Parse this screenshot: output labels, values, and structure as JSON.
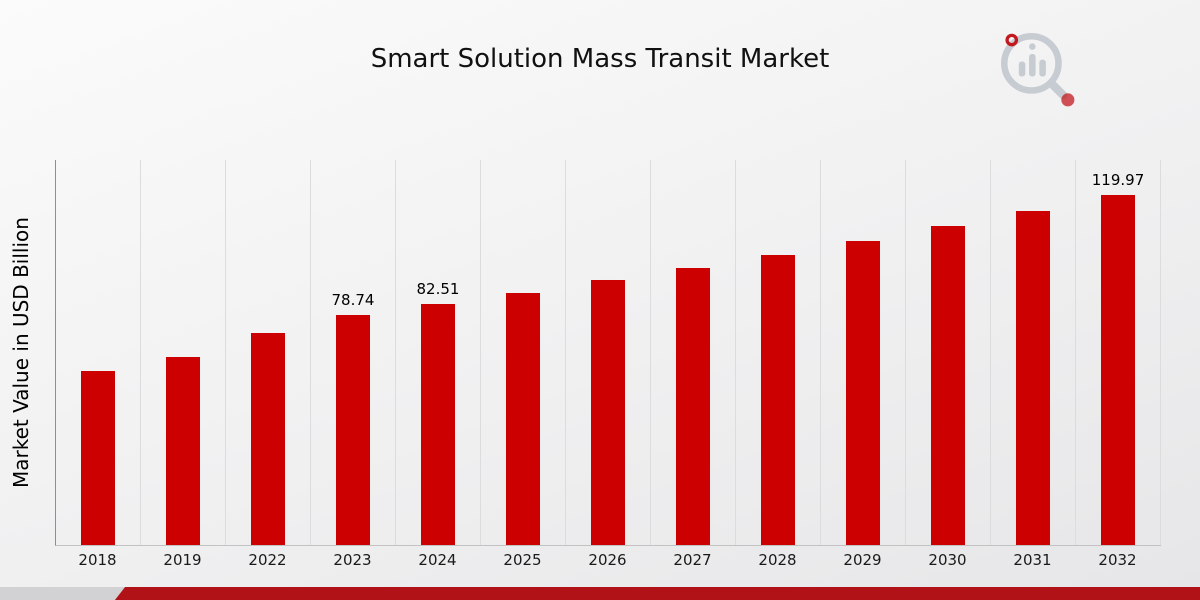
{
  "chart_data": {
    "type": "bar",
    "title": "Smart Solution Mass Transit Market",
    "xlabel": "",
    "ylabel": "Market Value in USD Billion",
    "categories": [
      "2018",
      "2019",
      "2022",
      "2023",
      "2024",
      "2025",
      "2026",
      "2027",
      "2028",
      "2029",
      "2030",
      "2031",
      "2032"
    ],
    "values": [
      59.5,
      64.3,
      72.8,
      78.74,
      82.51,
      86.5,
      90.7,
      95.0,
      99.5,
      104.3,
      109.3,
      114.5,
      119.97
    ],
    "labels": [
      null,
      null,
      null,
      "78.74",
      "82.51",
      null,
      null,
      null,
      null,
      null,
      null,
      null,
      "119.97"
    ],
    "ylim": [
      0,
      132
    ],
    "grid": "vertical",
    "legend": "none",
    "bar_color": "#cc0000"
  },
  "branding": {
    "logo": "magnifier-bar-chart-logo",
    "logo_gray": "#c7ccd2",
    "logo_red": "#c2191f",
    "accent_bar_color": "#b01217"
  }
}
